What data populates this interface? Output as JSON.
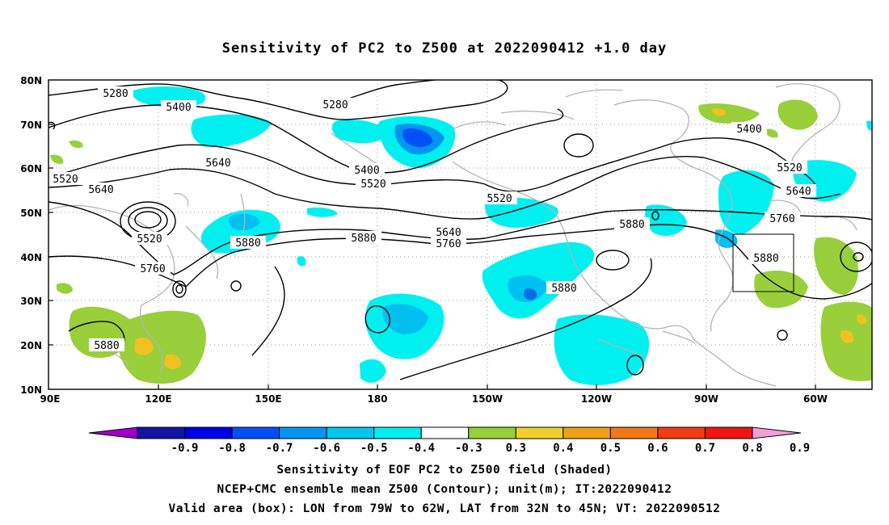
{
  "title": "Sensitivity of PC2 to Z500 at 2022090412 +1.0 day",
  "map": {
    "lat_labels": [
      "80N",
      "70N",
      "60N",
      "50N",
      "40N",
      "30N",
      "20N",
      "10N"
    ],
    "lon_labels": [
      "90E",
      "120E",
      "150E",
      "180",
      "150W",
      "120W",
      "90W",
      "60W"
    ],
    "contour_labels": [
      "5280",
      "5400",
      "5280",
      "5400",
      "5640",
      "5520",
      "5640",
      "5400",
      "5520",
      "5520",
      "5520",
      "5520",
      "5640",
      "5880",
      "5880",
      "5640",
      "5760",
      "5880",
      "5760",
      "5880",
      "5880",
      "5880",
      "5640",
      "5760",
      "5880"
    ],
    "colors": {
      "contour": "#000000",
      "coast": "#b4b4b4",
      "grid": "#9a9a9a",
      "neg_shade": "#00f0f0",
      "neg_mid": "#00c0f0",
      "neg_strong": "#0070e0",
      "pos_shade": "#98cf3a",
      "pos_mid": "#f0c020"
    },
    "valid_box": {
      "lon_w": "79W",
      "lon_e": "62W",
      "lat_s": "32N",
      "lat_n": "45N"
    }
  },
  "colorbar": {
    "labels": [
      "-0.9",
      "-0.8",
      "-0.7",
      "-0.6",
      "-0.5",
      "-0.4",
      "-0.3",
      "0.3",
      "0.4",
      "0.5",
      "0.6",
      "0.7",
      "0.8",
      "0.9"
    ],
    "colors": [
      "#a000c8",
      "#1414a0",
      "#0000e6",
      "#0050f5",
      "#0096f0",
      "#00c8f0",
      "#00f0f0",
      "#ffffff",
      "#98cf3a",
      "#f0d030",
      "#f0a018",
      "#f07818",
      "#f03c14",
      "#f01414",
      "#f0a0d8"
    ]
  },
  "caption": {
    "line1": "Sensitivity of EOF PC2 to Z500 field (Shaded)",
    "line2": "NCEP+CMC ensemble mean Z500 (Contour); unit(m); IT:2022090412",
    "line3": "Valid area (box): LON from 79W to 62W, LAT from 32N to 45N; VT: 2022090512"
  }
}
